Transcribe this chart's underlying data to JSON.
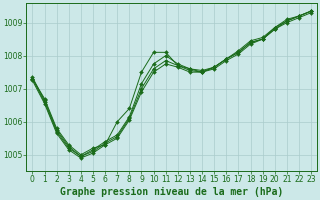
{
  "title": "Graphe pression niveau de la mer (hPa)",
  "background_color": "#cce8e8",
  "grid_color": "#aacccc",
  "line_color": "#1a6b1a",
  "xlim": [
    -0.5,
    23.5
  ],
  "ylim": [
    1004.5,
    1009.6
  ],
  "yticks": [
    1005,
    1006,
    1007,
    1008,
    1009
  ],
  "xticks": [
    0,
    1,
    2,
    3,
    4,
    5,
    6,
    7,
    8,
    9,
    10,
    11,
    12,
    13,
    14,
    15,
    16,
    17,
    18,
    19,
    20,
    21,
    22,
    23
  ],
  "series": [
    [
      1007.3,
      1006.7,
      1005.8,
      1005.3,
      1005.0,
      1005.2,
      1005.3,
      1006.0,
      1006.4,
      1007.5,
      1008.1,
      1008.1,
      1007.7,
      1007.6,
      1007.5,
      1007.65,
      1007.9,
      1008.15,
      1008.45,
      1008.55,
      1008.85,
      1009.1,
      1009.2,
      1009.35
    ],
    [
      1007.35,
      1006.65,
      1005.75,
      1005.25,
      1004.95,
      1005.15,
      1005.4,
      1005.6,
      1006.15,
      1007.15,
      1007.75,
      1008.0,
      1007.75,
      1007.6,
      1007.55,
      1007.65,
      1007.9,
      1008.1,
      1008.4,
      1008.5,
      1008.8,
      1009.05,
      1009.2,
      1009.35
    ],
    [
      1007.3,
      1006.6,
      1005.7,
      1005.2,
      1004.95,
      1005.1,
      1005.35,
      1005.55,
      1006.1,
      1007.0,
      1007.6,
      1007.85,
      1007.7,
      1007.55,
      1007.5,
      1007.65,
      1007.9,
      1008.1,
      1008.4,
      1008.5,
      1008.85,
      1009.05,
      1009.2,
      1009.35
    ],
    [
      1007.25,
      1006.55,
      1005.65,
      1005.15,
      1004.9,
      1005.05,
      1005.3,
      1005.5,
      1006.05,
      1006.9,
      1007.5,
      1007.75,
      1007.65,
      1007.5,
      1007.5,
      1007.6,
      1007.85,
      1008.05,
      1008.35,
      1008.5,
      1008.8,
      1009.0,
      1009.15,
      1009.3
    ]
  ],
  "title_fontsize": 7.0,
  "tick_fontsize": 5.5
}
